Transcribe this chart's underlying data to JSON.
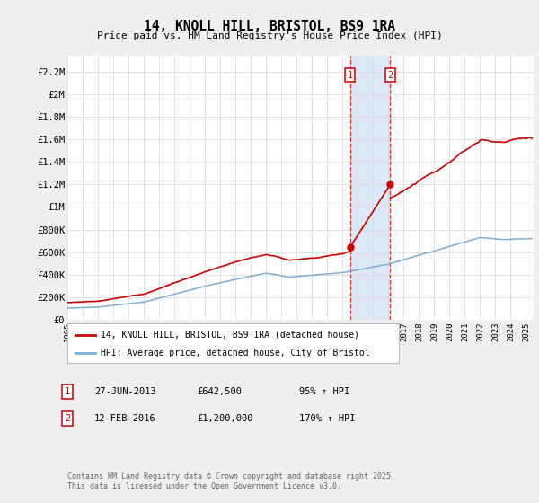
{
  "title": "14, KNOLL HILL, BRISTOL, BS9 1RA",
  "subtitle": "Price paid vs. HM Land Registry's House Price Index (HPI)",
  "ylabel_ticks": [
    "£0",
    "£200K",
    "£400K",
    "£600K",
    "£800K",
    "£1M",
    "£1.2M",
    "£1.4M",
    "£1.6M",
    "£1.8M",
    "£2M",
    "£2.2M"
  ],
  "ytick_values": [
    0,
    200000,
    400000,
    600000,
    800000,
    1000000,
    1200000,
    1400000,
    1600000,
    1800000,
    2000000,
    2200000
  ],
  "ylim": [
    0,
    2350000
  ],
  "xlim_start": 1995.0,
  "xlim_end": 2025.5,
  "line1_color": "#cc0000",
  "line2_color": "#7eadd4",
  "shade_color": "#dce8f5",
  "vline_color": "#dd3333",
  "transaction1_x": 2013.49,
  "transaction1_y": 642500,
  "transaction2_x": 2016.12,
  "transaction2_y": 1200000,
  "legend_label1": "14, KNOLL HILL, BRISTOL, BS9 1RA (detached house)",
  "legend_label2": "HPI: Average price, detached house, City of Bristol",
  "table_row1_date": "27-JUN-2013",
  "table_row1_price": "£642,500",
  "table_row1_hpi": "95% ↑ HPI",
  "table_row2_date": "12-FEB-2016",
  "table_row2_price": "£1,200,000",
  "table_row2_hpi": "170% ↑ HPI",
  "footer": "Contains HM Land Registry data © Crown copyright and database right 2025.\nThis data is licensed under the Open Government Licence v3.0.",
  "background_color": "#efefef",
  "plot_bg_color": "#ffffff"
}
